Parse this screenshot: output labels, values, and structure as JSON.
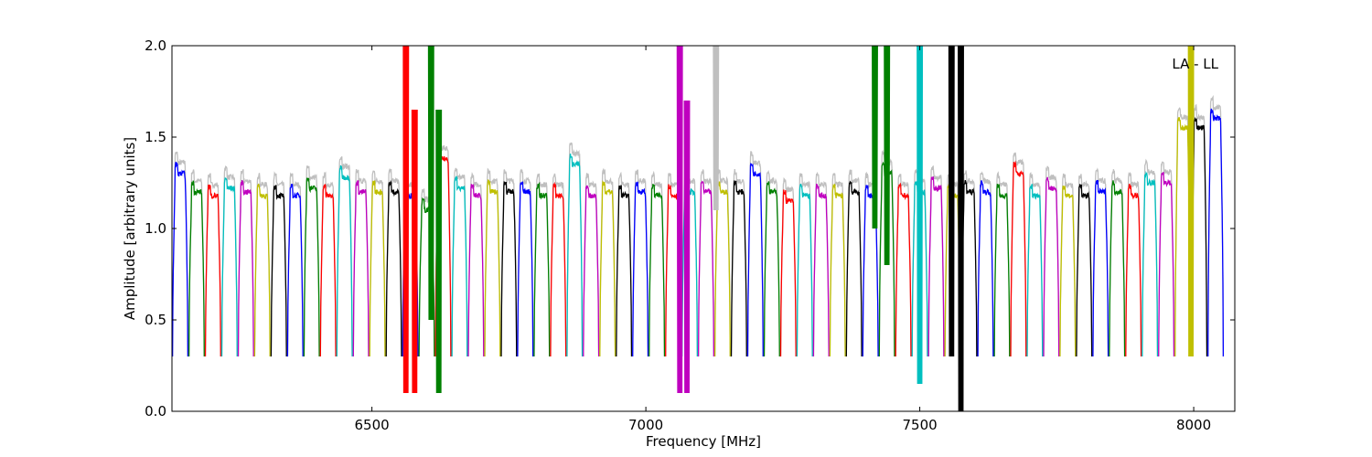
{
  "chart_data": {
    "type": "line",
    "title": "",
    "xlabel": "Frequency [MHz]",
    "ylabel": "Amplitude [arbitrary units]",
    "annotation": "LA - LL",
    "xlim": [
      6135,
      8075
    ],
    "ylim": [
      0.0,
      2.0
    ],
    "xticks": [
      6500,
      7000,
      7500,
      8000
    ],
    "xtick_labels": [
      "6500",
      "7000",
      "7500",
      "8000"
    ],
    "yticks": [
      0.0,
      0.5,
      1.0,
      1.5,
      2.0
    ],
    "ytick_labels": [
      "0.0",
      "0.5",
      "1.0",
      "1.5",
      "2.0"
    ],
    "grid": false,
    "legend": "none",
    "background_series_color": "#bfbfbf",
    "window_colors": [
      "#0000ff",
      "#008000",
      "#ff0000",
      "#00bfbf",
      "#bf00bf",
      "#bfbf00",
      "#000000"
    ],
    "window_count": 64,
    "window_start_mhz": 6136,
    "window_width_mhz": 30,
    "window_plateau": [
      1.3,
      1.2,
      1.18,
      1.22,
      1.2,
      1.18,
      1.18,
      1.18,
      1.22,
      1.18,
      1.28,
      1.2,
      1.2,
      1.2,
      1.18,
      1.1,
      1.38,
      1.22,
      1.18,
      1.2,
      1.2,
      1.2,
      1.18,
      1.18,
      1.35,
      1.18,
      1.2,
      1.18,
      1.2,
      1.18,
      1.18,
      1.2,
      1.2,
      1.2,
      1.2,
      1.3,
      1.2,
      1.15,
      1.18,
      1.18,
      1.18,
      1.2,
      1.18,
      1.3,
      1.18,
      1.2,
      1.22,
      1.18,
      1.2,
      1.2,
      1.18,
      1.3,
      1.18,
      1.22,
      1.18,
      1.18,
      1.2,
      1.2,
      1.18,
      1.25,
      1.25,
      1.55,
      1.55,
      1.6
    ],
    "window_minimum": 0.3,
    "spikes": [
      {
        "x": 6562,
        "y_top": 2.0,
        "y_bottom": 0.1,
        "color": "#ff0000"
      },
      {
        "x": 6578,
        "y_top": 1.65,
        "y_bottom": 0.1,
        "color": "#ff0000"
      },
      {
        "x": 6608,
        "y_top": 2.0,
        "y_bottom": 0.5,
        "color": "#008000"
      },
      {
        "x": 6622,
        "y_top": 1.65,
        "y_bottom": 0.1,
        "color": "#008000"
      },
      {
        "x": 7062,
        "y_top": 2.0,
        "y_bottom": 0.1,
        "color": "#bf00bf"
      },
      {
        "x": 7075,
        "y_top": 1.7,
        "y_bottom": 0.1,
        "color": "#bf00bf"
      },
      {
        "x": 7128,
        "y_top": 2.0,
        "y_bottom": 1.1,
        "color": "#bfbfbf"
      },
      {
        "x": 7418,
        "y_top": 2.0,
        "y_bottom": 1.0,
        "color": "#008000"
      },
      {
        "x": 7440,
        "y_top": 2.0,
        "y_bottom": 0.8,
        "color": "#008000"
      },
      {
        "x": 7500,
        "y_top": 2.0,
        "y_bottom": 0.15,
        "color": "#00bfbf"
      },
      {
        "x": 7558,
        "y_top": 2.0,
        "y_bottom": 0.3,
        "color": "#000000"
      },
      {
        "x": 7575,
        "y_top": 2.0,
        "y_bottom": 0.0,
        "color": "#000000"
      },
      {
        "x": 7995,
        "y_top": 2.0,
        "y_bottom": 0.3,
        "color": "#bfbf00"
      }
    ]
  }
}
